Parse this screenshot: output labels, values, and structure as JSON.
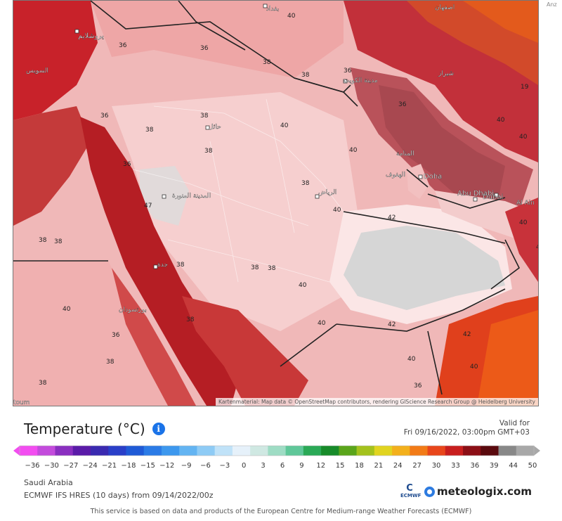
{
  "header": {
    "title": "Temperature (°C)",
    "valid_label": "Valid for",
    "valid_time": "Fri 09/16/2022, 03:00pm GMT+03",
    "side_text": "Anz"
  },
  "legend": {
    "tick_values": [
      "-36",
      "-30",
      "-27",
      "-24",
      "-21",
      "-18",
      "-15",
      "-12",
      "-9",
      "-6",
      "-3",
      "0",
      "3",
      "6",
      "9",
      "12",
      "15",
      "18",
      "21",
      "24",
      "27",
      "30",
      "33",
      "36",
      "39",
      "44",
      "50"
    ],
    "colors": [
      "#f24df0",
      "#c34bdc",
      "#8a2fc0",
      "#5a1ba8",
      "#3a2ab0",
      "#2a3fc8",
      "#1f5ad6",
      "#2b7be6",
      "#3d98ee",
      "#63b4f2",
      "#8ecbf5",
      "#c0e2f8",
      "#e6f1fa",
      "#cfe8e2",
      "#9edcc4",
      "#5fc799",
      "#2aa956",
      "#178b2a",
      "#5aa51b",
      "#a4c21d",
      "#e1d420",
      "#f3b01c",
      "#f27b17",
      "#e8461b",
      "#c81e1e",
      "#8c0f16",
      "#5a0a0e",
      "#888888",
      "#a8a8a8"
    ]
  },
  "region": "Saudi Arabia",
  "model": "ECMWF IFS HRES (10 days) from 09/14/2022/00z",
  "logos": {
    "ecmwf_glyph": "C",
    "ecmwf": "ECMWF",
    "meteologix": "meteologix.com"
  },
  "attribution": "Kartenmaterial: Map data © OpenStreetMap contributors, rendering GIScience Research Group @ Heidelberg University",
  "footer": "This service is based on data and products of the European Centre for Medium-range Weather Forecasts (ECMWF)",
  "map": {
    "places": [
      {
        "id": "jerusalem",
        "name": "يروشلايم"
      },
      {
        "id": "baghdad",
        "name": "بغداد"
      },
      {
        "id": "isfahan",
        "name": "اصفهان"
      },
      {
        "id": "kuwait",
        "name": "مدينة الكويت"
      },
      {
        "id": "shiraz",
        "name": "شیراز"
      },
      {
        "id": "hail",
        "name": "حائل"
      },
      {
        "id": "manama",
        "name": "المنامة"
      },
      {
        "id": "hofuf",
        "name": "الهفوف"
      },
      {
        "id": "doha",
        "name": "Doha"
      },
      {
        "id": "riyadh",
        "name": "الرياض"
      },
      {
        "id": "dubai",
        "name": "Dubai"
      },
      {
        "id": "abudhabi",
        "name": "Abu Dhabi"
      },
      {
        "id": "alain",
        "name": "Al Ain"
      },
      {
        "id": "medina",
        "name": "المدينة المنورة"
      },
      {
        "id": "jeddah",
        "name": "جدة"
      },
      {
        "id": "portsudan",
        "name": "بورتسودان"
      },
      {
        "id": "suez",
        "name": "السويس"
      },
      {
        "id": "khartoum",
        "name": "toum"
      }
    ],
    "values": [
      {
        "t": "40"
      },
      {
        "t": "36"
      },
      {
        "t": "36"
      },
      {
        "t": "38"
      },
      {
        "t": "36"
      },
      {
        "t": "38"
      },
      {
        "t": "38"
      },
      {
        "t": "36"
      },
      {
        "t": "38"
      },
      {
        "t": "38"
      },
      {
        "t": "38"
      },
      {
        "t": "40"
      },
      {
        "t": "40"
      },
      {
        "t": "40"
      },
      {
        "t": "42"
      },
      {
        "t": "38"
      },
      {
        "t": "38"
      },
      {
        "t": "40"
      },
      {
        "t": "40"
      },
      {
        "t": "42"
      },
      {
        "t": "42"
      },
      {
        "t": "40"
      },
      {
        "t": "38"
      },
      {
        "t": "40"
      },
      {
        "t": "36"
      },
      {
        "t": "38"
      },
      {
        "t": "38"
      },
      {
        "t": "40"
      },
      {
        "t": "36"
      },
      {
        "t": "40"
      },
      {
        "t": "38"
      },
      {
        "t": "36"
      },
      {
        "t": "36"
      },
      {
        "t": "38"
      },
      {
        "t": "38"
      },
      {
        "t": "40"
      },
      {
        "t": "42"
      },
      {
        "t": "40"
      },
      {
        "t": "47"
      },
      {
        "t": "19"
      }
    ]
  }
}
